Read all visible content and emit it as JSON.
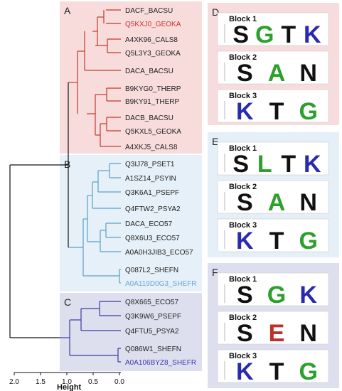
{
  "tree": {
    "clades": [
      {
        "letter": "A",
        "color": "#c0392b",
        "bg": "#f8dcdc",
        "taxa": [
          "DACF_BACSU",
          "Q5KXJ0_GEOKA",
          "A4XK96_CALS8",
          "Q5L3Y3_GEOKA",
          "DACA_BACSU",
          "B9KYG0_THERP",
          "B9KY91_THERP",
          "DACB_BACSU",
          "Q5KXL5_GEOKA",
          "A4XKJ5_CALS8"
        ],
        "highlight": 1,
        "highlight_color": "#d0322a"
      },
      {
        "letter": "B",
        "color": "#5aa0c8",
        "bg": "#e5f0f8",
        "taxa": [
          "Q3IJ78_PSET1",
          "A1SZ14_PSYIN",
          "Q3K6A1_PSEPF",
          "Q4FTW2_PSYA2",
          "DACA_ECO57",
          "Q8X6U3_ECO57",
          "A0A0H3JIB3_ECO57",
          "Q087L2_SHEFN",
          "A0A119D0G3_SHEFR"
        ],
        "highlight": 8,
        "highlight_color": "#6aa8d8"
      },
      {
        "letter": "C",
        "color": "#3a3aa0",
        "bg": "#dedfee",
        "taxa": [
          "Q8X665_ECO57",
          "Q3K9W6_PSEPF",
          "Q4FTU5_PSYA2",
          "Q086W1_SHEFN",
          "A0A106BYZ8_SHEFR"
        ],
        "highlight": 4,
        "highlight_color": "#3a3ab0"
      }
    ],
    "axis": {
      "title": "Height",
      "ticks": [
        "2.0",
        "1.5",
        "1.0",
        "0.5",
        "0.0"
      ]
    }
  },
  "panels": [
    {
      "letter": "D",
      "bg": "#f6dcdc",
      "blocks": [
        {
          "title": "Block 1",
          "motif": "SGTK"
        },
        {
          "title": "Block 2",
          "motif": "SAN"
        },
        {
          "title": "Block 3",
          "motif": "KTG"
        }
      ]
    },
    {
      "letter": "E",
      "bg": "#e4eff8",
      "blocks": [
        {
          "title": "Block 1",
          "motif": "SLTK"
        },
        {
          "title": "Block 2",
          "motif": "SAN"
        },
        {
          "title": "Block 3",
          "motif": "KTG"
        }
      ]
    },
    {
      "letter": "F",
      "bg": "#dedfee",
      "blocks": [
        {
          "title": "Block 1",
          "motif": "SGK"
        },
        {
          "title": "Block 2",
          "motif": "SEN"
        },
        {
          "title": "Block 3",
          "motif": "KTG"
        }
      ]
    }
  ],
  "colors": {
    "black": "#111111",
    "green": "#2ca02c",
    "blue": "#2a2ab0",
    "red": "#c0302a"
  }
}
